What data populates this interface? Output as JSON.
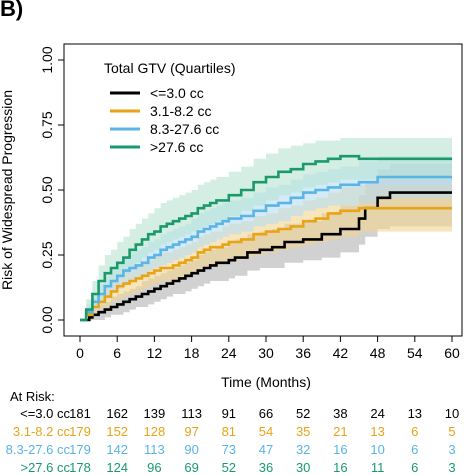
{
  "panel_label": "B)",
  "chart_data": {
    "type": "line",
    "step": true,
    "xlabel": "Time (Months)",
    "ylabel": "Risk of Widespread Progression",
    "xlim": [
      0,
      60
    ],
    "ylim": [
      0,
      1
    ],
    "xticks": [
      0,
      6,
      12,
      18,
      24,
      30,
      36,
      42,
      48,
      54,
      60
    ],
    "yticks": [
      "0.00",
      "0.25",
      "0.50",
      "0.75",
      "1.00"
    ],
    "grid": false,
    "legend": {
      "title": "Total GTV (Quartiles)",
      "position": "top-left"
    },
    "series": [
      {
        "name": "<=3.0 cc",
        "color": "#000000",
        "band_color": "#b3b3b3",
        "points": [
          [
            0,
            0
          ],
          [
            1.5,
            0.01
          ],
          [
            2,
            0.02
          ],
          [
            3,
            0.03
          ],
          [
            4,
            0.04
          ],
          [
            5,
            0.05
          ],
          [
            6,
            0.06
          ],
          [
            7,
            0.07
          ],
          [
            8,
            0.08
          ],
          [
            9,
            0.09
          ],
          [
            10,
            0.1
          ],
          [
            11,
            0.11
          ],
          [
            12,
            0.12
          ],
          [
            13,
            0.13
          ],
          [
            14,
            0.14
          ],
          [
            15,
            0.15
          ],
          [
            16,
            0.16
          ],
          [
            17,
            0.17
          ],
          [
            18,
            0.18
          ],
          [
            19,
            0.19
          ],
          [
            20,
            0.2
          ],
          [
            21,
            0.21
          ],
          [
            22,
            0.22
          ],
          [
            24,
            0.23
          ],
          [
            25,
            0.24
          ],
          [
            27,
            0.26
          ],
          [
            29,
            0.27
          ],
          [
            31,
            0.28
          ],
          [
            33,
            0.3
          ],
          [
            36,
            0.31
          ],
          [
            39,
            0.33
          ],
          [
            42,
            0.35
          ],
          [
            45,
            0.39
          ],
          [
            46,
            0.43
          ],
          [
            48,
            0.47
          ],
          [
            50,
            0.49
          ],
          [
            60,
            0.49
          ]
        ],
        "lower": [
          0,
          0,
          0,
          0,
          0.01,
          0.02,
          0.02,
          0.03,
          0.04,
          0.05,
          0.05,
          0.06,
          0.07,
          0.08,
          0.09,
          0.1,
          0.1,
          0.11,
          0.12,
          0.13,
          0.14,
          0.15,
          0.15,
          0.16,
          0.17,
          0.19,
          0.2,
          0.2,
          0.22,
          0.23,
          0.24,
          0.26,
          0.29,
          0.32,
          0.35,
          0.36,
          0.36
        ],
        "upper": [
          0,
          0.03,
          0.04,
          0.06,
          0.07,
          0.09,
          0.1,
          0.11,
          0.12,
          0.13,
          0.15,
          0.16,
          0.17,
          0.18,
          0.19,
          0.2,
          0.21,
          0.22,
          0.23,
          0.25,
          0.26,
          0.27,
          0.28,
          0.3,
          0.31,
          0.33,
          0.34,
          0.35,
          0.37,
          0.38,
          0.41,
          0.44,
          0.48,
          0.53,
          0.58,
          0.6,
          0.6
        ],
        "at_risk": [
          181,
          162,
          139,
          113,
          91,
          66,
          52,
          38,
          24,
          13,
          10
        ]
      },
      {
        "name": "3.1-8.2 cc",
        "color": "#e8a317",
        "band_color": "#f1d48e",
        "points": [
          [
            0,
            0
          ],
          [
            1,
            0.02
          ],
          [
            2,
            0.05
          ],
          [
            3,
            0.07
          ],
          [
            4,
            0.09
          ],
          [
            5,
            0.11
          ],
          [
            6,
            0.13
          ],
          [
            7,
            0.14
          ],
          [
            8,
            0.15
          ],
          [
            9,
            0.16
          ],
          [
            10,
            0.17
          ],
          [
            11,
            0.18
          ],
          [
            12,
            0.19
          ],
          [
            13,
            0.2
          ],
          [
            15,
            0.21
          ],
          [
            16,
            0.22
          ],
          [
            17,
            0.23
          ],
          [
            18,
            0.24
          ],
          [
            19,
            0.26
          ],
          [
            20,
            0.27
          ],
          [
            21,
            0.28
          ],
          [
            23,
            0.29
          ],
          [
            24,
            0.3
          ],
          [
            26,
            0.31
          ],
          [
            28,
            0.33
          ],
          [
            30,
            0.34
          ],
          [
            32,
            0.35
          ],
          [
            34,
            0.36
          ],
          [
            36,
            0.38
          ],
          [
            38,
            0.39
          ],
          [
            40,
            0.41
          ],
          [
            42,
            0.42
          ],
          [
            45,
            0.43
          ],
          [
            60,
            0.43
          ]
        ],
        "lower": [
          0,
          0,
          0.02,
          0.04,
          0.05,
          0.07,
          0.08,
          0.09,
          0.1,
          0.11,
          0.12,
          0.13,
          0.14,
          0.15,
          0.15,
          0.16,
          0.17,
          0.18,
          0.19,
          0.2,
          0.21,
          0.22,
          0.23,
          0.24,
          0.25,
          0.26,
          0.27,
          0.28,
          0.29,
          0.3,
          0.31,
          0.32,
          0.34,
          0.34
        ],
        "upper": [
          0,
          0.05,
          0.08,
          0.1,
          0.13,
          0.15,
          0.17,
          0.19,
          0.2,
          0.21,
          0.22,
          0.23,
          0.25,
          0.26,
          0.27,
          0.28,
          0.29,
          0.3,
          0.32,
          0.33,
          0.34,
          0.36,
          0.37,
          0.38,
          0.4,
          0.41,
          0.43,
          0.44,
          0.46,
          0.47,
          0.49,
          0.51,
          0.52,
          0.52
        ],
        "at_risk": [
          179,
          152,
          128,
          97,
          81,
          54,
          35,
          21,
          13,
          6,
          5
        ]
      },
      {
        "name": "8.3-27.6 cc",
        "color": "#5ab4e5",
        "band_color": "#b5dcf3",
        "points": [
          [
            0,
            0
          ],
          [
            1,
            0.03
          ],
          [
            2,
            0.07
          ],
          [
            3,
            0.1
          ],
          [
            4,
            0.13
          ],
          [
            5,
            0.15
          ],
          [
            6,
            0.17
          ],
          [
            7,
            0.19
          ],
          [
            8,
            0.2
          ],
          [
            9,
            0.21
          ],
          [
            10,
            0.22
          ],
          [
            11,
            0.24
          ],
          [
            12,
            0.25
          ],
          [
            13,
            0.27
          ],
          [
            14,
            0.28
          ],
          [
            15,
            0.29
          ],
          [
            16,
            0.3
          ],
          [
            17,
            0.31
          ],
          [
            18,
            0.32
          ],
          [
            19,
            0.34
          ],
          [
            20,
            0.35
          ],
          [
            21,
            0.36
          ],
          [
            22,
            0.37
          ],
          [
            23,
            0.38
          ],
          [
            24,
            0.39
          ],
          [
            26,
            0.4
          ],
          [
            28,
            0.42
          ],
          [
            30,
            0.44
          ],
          [
            32,
            0.45
          ],
          [
            34,
            0.47
          ],
          [
            36,
            0.49
          ],
          [
            38,
            0.5
          ],
          [
            40,
            0.51
          ],
          [
            42,
            0.52
          ],
          [
            45,
            0.53
          ],
          [
            48,
            0.55
          ],
          [
            60,
            0.55
          ]
        ],
        "lower": [
          0,
          0.01,
          0.04,
          0.06,
          0.09,
          0.11,
          0.12,
          0.14,
          0.15,
          0.16,
          0.17,
          0.19,
          0.2,
          0.21,
          0.22,
          0.23,
          0.24,
          0.25,
          0.26,
          0.28,
          0.29,
          0.3,
          0.31,
          0.32,
          0.33,
          0.34,
          0.36,
          0.37,
          0.38,
          0.4,
          0.42,
          0.43,
          0.44,
          0.44,
          0.45,
          0.47,
          0.47
        ],
        "upper": [
          0,
          0.06,
          0.1,
          0.14,
          0.17,
          0.2,
          0.22,
          0.24,
          0.26,
          0.27,
          0.28,
          0.3,
          0.31,
          0.33,
          0.34,
          0.35,
          0.36,
          0.37,
          0.39,
          0.41,
          0.42,
          0.43,
          0.44,
          0.45,
          0.46,
          0.47,
          0.49,
          0.51,
          0.52,
          0.54,
          0.56,
          0.57,
          0.58,
          0.59,
          0.61,
          0.63,
          0.63
        ],
        "at_risk": [
          179,
          142,
          113,
          90,
          73,
          47,
          32,
          16,
          10,
          6,
          3
        ]
      },
      {
        "name": ">27.6 cc",
        "color": "#1a9a6c",
        "band_color": "#b7e3d2",
        "points": [
          [
            0,
            0
          ],
          [
            1,
            0.04
          ],
          [
            2,
            0.1
          ],
          [
            3,
            0.15
          ],
          [
            4,
            0.18
          ],
          [
            5,
            0.2
          ],
          [
            6,
            0.22
          ],
          [
            7,
            0.24
          ],
          [
            8,
            0.27
          ],
          [
            9,
            0.29
          ],
          [
            10,
            0.31
          ],
          [
            11,
            0.33
          ],
          [
            12,
            0.34
          ],
          [
            13,
            0.36
          ],
          [
            14,
            0.37
          ],
          [
            15,
            0.38
          ],
          [
            16,
            0.39
          ],
          [
            17,
            0.4
          ],
          [
            18,
            0.41
          ],
          [
            19,
            0.43
          ],
          [
            20,
            0.44
          ],
          [
            21,
            0.45
          ],
          [
            22,
            0.46
          ],
          [
            24,
            0.48
          ],
          [
            26,
            0.5
          ],
          [
            28,
            0.53
          ],
          [
            30,
            0.55
          ],
          [
            32,
            0.57
          ],
          [
            34,
            0.58
          ],
          [
            36,
            0.6
          ],
          [
            38,
            0.61
          ],
          [
            40,
            0.62
          ],
          [
            42,
            0.63
          ],
          [
            45,
            0.62
          ],
          [
            60,
            0.62
          ]
        ],
        "lower": [
          0,
          0.01,
          0.05,
          0.09,
          0.12,
          0.14,
          0.16,
          0.18,
          0.2,
          0.22,
          0.24,
          0.26,
          0.27,
          0.29,
          0.3,
          0.31,
          0.32,
          0.33,
          0.34,
          0.35,
          0.36,
          0.37,
          0.38,
          0.4,
          0.42,
          0.44,
          0.46,
          0.48,
          0.49,
          0.51,
          0.52,
          0.53,
          0.54,
          0.54,
          0.54
        ],
        "upper": [
          0,
          0.08,
          0.15,
          0.21,
          0.25,
          0.27,
          0.3,
          0.32,
          0.35,
          0.37,
          0.39,
          0.41,
          0.43,
          0.45,
          0.46,
          0.47,
          0.48,
          0.49,
          0.5,
          0.52,
          0.53,
          0.54,
          0.55,
          0.57,
          0.59,
          0.62,
          0.64,
          0.66,
          0.67,
          0.68,
          0.69,
          0.69,
          0.7,
          0.7,
          0.7
        ],
        "at_risk": [
          178,
          124,
          96,
          69,
          52,
          36,
          30,
          16,
          11,
          6,
          3
        ]
      }
    ],
    "at_risk_title": "At Risk:",
    "at_risk_labels": [
      "<=3.0 cc",
      "3.1-8.2 cc",
      "8.3-27.6 cc",
      ">27.6 cc"
    ]
  }
}
